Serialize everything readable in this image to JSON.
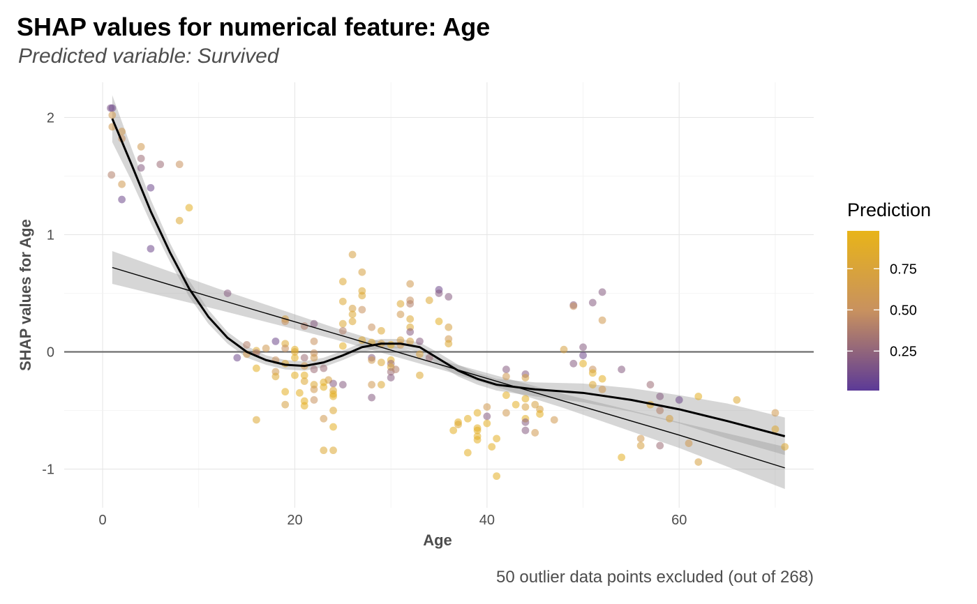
{
  "title": "SHAP values for numerical feature: Age",
  "subtitle": "Predicted variable: Survived",
  "caption": "50 outlier data points excluded (out of 268)",
  "chart_data": {
    "type": "scatter",
    "title": "SHAP values for numerical feature: Age",
    "subtitle": "Predicted variable: Survived",
    "xlabel": "Age",
    "ylabel": "SHAP values for Age",
    "xlim": [
      -4,
      74
    ],
    "ylim": [
      -1.33,
      2.3
    ],
    "xticks": [
      0,
      20,
      40,
      60
    ],
    "yticks": [
      -1,
      0,
      1,
      2
    ],
    "ytick_labels": [
      "-1",
      "0",
      "1",
      "2"
    ],
    "grid": true,
    "reference_line_y": 0,
    "legend": {
      "title": "Prediction",
      "type": "colorbar",
      "range": [
        0.01,
        0.98
      ],
      "ticks": [
        0.25,
        0.5,
        0.75
      ],
      "tick_labels": [
        "0.25",
        "0.50",
        "0.75"
      ],
      "colors": [
        "#5c3a97",
        "#c8915f",
        "#e8b419"
      ],
      "placement": "right"
    },
    "points": [
      {
        "x": 0.83,
        "y": 2.08,
        "p": 0.15
      },
      {
        "x": 1,
        "y": 2.08,
        "p": 0.1
      },
      {
        "x": 1,
        "y": 2.02,
        "p": 0.6
      },
      {
        "x": 1,
        "y": 1.92,
        "p": 0.6
      },
      {
        "x": 0.92,
        "y": 1.51,
        "p": 0.4
      },
      {
        "x": 2,
        "y": 1.88,
        "p": 0.6
      },
      {
        "x": 2,
        "y": 1.82,
        "p": 0.5
      },
      {
        "x": 2,
        "y": 1.43,
        "p": 0.6
      },
      {
        "x": 2,
        "y": 1.3,
        "p": 0.1
      },
      {
        "x": 4,
        "y": 1.75,
        "p": 0.6
      },
      {
        "x": 4,
        "y": 1.65,
        "p": 0.3
      },
      {
        "x": 4,
        "y": 1.57,
        "p": 0.2
      },
      {
        "x": 5,
        "y": 1.4,
        "p": 0.1
      },
      {
        "x": 5,
        "y": 0.88,
        "p": 0.1
      },
      {
        "x": 6,
        "y": 1.6,
        "p": 0.3
      },
      {
        "x": 8,
        "y": 1.6,
        "p": 0.5
      },
      {
        "x": 8,
        "y": 1.12,
        "p": 0.8
      },
      {
        "x": 9,
        "y": 1.23,
        "p": 0.9
      },
      {
        "x": 13,
        "y": 0.5,
        "p": 0.2
      },
      {
        "x": 14,
        "y": -0.05,
        "p": 0.1
      },
      {
        "x": 15,
        "y": 0.06,
        "p": 0.4
      },
      {
        "x": 15,
        "y": -0.02,
        "p": 0.6
      },
      {
        "x": 16,
        "y": 0.01,
        "p": 0.8
      },
      {
        "x": 16,
        "y": -0.01,
        "p": 0.3
      },
      {
        "x": 16,
        "y": -0.14,
        "p": 0.9
      },
      {
        "x": 16,
        "y": -0.58,
        "p": 0.8
      },
      {
        "x": 17,
        "y": 0.03,
        "p": 0.6
      },
      {
        "x": 18,
        "y": 0.09,
        "p": 0.1
      },
      {
        "x": 18,
        "y": -0.07,
        "p": 0.5
      },
      {
        "x": 18,
        "y": -0.17,
        "p": 0.6
      },
      {
        "x": 18,
        "y": -0.21,
        "p": 0.8
      },
      {
        "x": 19,
        "y": 0.28,
        "p": 0.7
      },
      {
        "x": 19,
        "y": 0.26,
        "p": 0.5
      },
      {
        "x": 19,
        "y": 0.07,
        "p": 0.8
      },
      {
        "x": 19,
        "y": 0.03,
        "p": 0.5
      },
      {
        "x": 19,
        "y": -0.1,
        "p": 0.8
      },
      {
        "x": 19,
        "y": -0.34,
        "p": 0.9
      },
      {
        "x": 19,
        "y": -0.45,
        "p": 0.7
      },
      {
        "x": 20,
        "y": 0.02,
        "p": 0.9
      },
      {
        "x": 20,
        "y": 0.0,
        "p": 0.8
      },
      {
        "x": 20,
        "y": -0.05,
        "p": 0.9
      },
      {
        "x": 20,
        "y": -0.2,
        "p": 0.9
      },
      {
        "x": 20.5,
        "y": -0.35,
        "p": 0.9
      },
      {
        "x": 21,
        "y": 0.22,
        "p": 0.4
      },
      {
        "x": 21,
        "y": -0.05,
        "p": 0.3
      },
      {
        "x": 21,
        "y": -0.12,
        "p": 0.6
      },
      {
        "x": 21,
        "y": -0.2,
        "p": 0.9
      },
      {
        "x": 21,
        "y": -0.25,
        "p": 0.8
      },
      {
        "x": 21,
        "y": -0.42,
        "p": 0.9
      },
      {
        "x": 21,
        "y": -0.46,
        "p": 0.9
      },
      {
        "x": 22,
        "y": 0.24,
        "p": 0.2
      },
      {
        "x": 22,
        "y": 0.09,
        "p": 0.5
      },
      {
        "x": 22,
        "y": -0.01,
        "p": 0.5
      },
      {
        "x": 22,
        "y": -0.05,
        "p": 0.6
      },
      {
        "x": 22,
        "y": -0.15,
        "p": 0.3
      },
      {
        "x": 22,
        "y": -0.28,
        "p": 0.8
      },
      {
        "x": 22,
        "y": -0.32,
        "p": 0.6
      },
      {
        "x": 22,
        "y": -0.41,
        "p": 0.5
      },
      {
        "x": 23,
        "y": -0.14,
        "p": 0.3
      },
      {
        "x": 23,
        "y": -0.26,
        "p": 0.9
      },
      {
        "x": 23,
        "y": -0.3,
        "p": 0.9
      },
      {
        "x": 23,
        "y": -0.57,
        "p": 0.6
      },
      {
        "x": 23,
        "y": -0.84,
        "p": 0.8
      },
      {
        "x": 23.5,
        "y": -0.24,
        "p": 0.7
      },
      {
        "x": 24,
        "y": -0.27,
        "p": 0.2
      },
      {
        "x": 24,
        "y": -0.33,
        "p": 0.8
      },
      {
        "x": 24,
        "y": -0.36,
        "p": 0.9
      },
      {
        "x": 24,
        "y": -0.38,
        "p": 0.9
      },
      {
        "x": 24,
        "y": -0.5,
        "p": 0.8
      },
      {
        "x": 24,
        "y": -0.64,
        "p": 0.9
      },
      {
        "x": 24,
        "y": -0.84,
        "p": 0.8
      },
      {
        "x": 25,
        "y": 0.6,
        "p": 0.8
      },
      {
        "x": 25,
        "y": 0.43,
        "p": 0.8
      },
      {
        "x": 25,
        "y": 0.24,
        "p": 0.8
      },
      {
        "x": 25,
        "y": 0.18,
        "p": 0.4
      },
      {
        "x": 25,
        "y": 0.05,
        "p": 0.9
      },
      {
        "x": 25,
        "y": -0.28,
        "p": 0.2
      },
      {
        "x": 26,
        "y": 0.83,
        "p": 0.7
      },
      {
        "x": 26,
        "y": 0.37,
        "p": 0.7
      },
      {
        "x": 26,
        "y": 0.32,
        "p": 0.8
      },
      {
        "x": 26,
        "y": 0.26,
        "p": 0.8
      },
      {
        "x": 27,
        "y": 0.68,
        "p": 0.7
      },
      {
        "x": 27,
        "y": 0.52,
        "p": 0.8
      },
      {
        "x": 27,
        "y": 0.48,
        "p": 0.8
      },
      {
        "x": 27,
        "y": 0.36,
        "p": 0.5
      },
      {
        "x": 27,
        "y": 0.1,
        "p": 0.8
      },
      {
        "x": 28,
        "y": 0.21,
        "p": 0.5
      },
      {
        "x": 28,
        "y": 0.08,
        "p": 0.8
      },
      {
        "x": 28,
        "y": -0.05,
        "p": 0.2
      },
      {
        "x": 28,
        "y": -0.07,
        "p": 0.6
      },
      {
        "x": 28,
        "y": -0.28,
        "p": 0.6
      },
      {
        "x": 28,
        "y": -0.39,
        "p": 0.2
      },
      {
        "x": 29,
        "y": 0.18,
        "p": 0.8
      },
      {
        "x": 29,
        "y": 0.07,
        "p": 0.7
      },
      {
        "x": 29,
        "y": -0.09,
        "p": 0.8
      },
      {
        "x": 29,
        "y": -0.28,
        "p": 0.8
      },
      {
        "x": 30,
        "y": 0.06,
        "p": 0.9
      },
      {
        "x": 30,
        "y": -0.07,
        "p": 0.9
      },
      {
        "x": 30,
        "y": -0.1,
        "p": 0.3
      },
      {
        "x": 30,
        "y": -0.13,
        "p": 0.8
      },
      {
        "x": 30,
        "y": -0.17,
        "p": 0.3
      },
      {
        "x": 30,
        "y": -0.22,
        "p": 0.2
      },
      {
        "x": 30.5,
        "y": -0.15,
        "p": 0.4
      },
      {
        "x": 31,
        "y": 0.41,
        "p": 0.8
      },
      {
        "x": 31,
        "y": 0.32,
        "p": 0.6
      },
      {
        "x": 31,
        "y": 0.1,
        "p": 0.7
      },
      {
        "x": 31,
        "y": 0.06,
        "p": 0.6
      },
      {
        "x": 32,
        "y": 0.58,
        "p": 0.6
      },
      {
        "x": 32,
        "y": 0.44,
        "p": 0.5
      },
      {
        "x": 32,
        "y": 0.41,
        "p": 0.4
      },
      {
        "x": 32,
        "y": 0.28,
        "p": 0.8
      },
      {
        "x": 32,
        "y": 0.21,
        "p": 0.8
      },
      {
        "x": 32,
        "y": 0.17,
        "p": 0.2
      },
      {
        "x": 32,
        "y": 0.09,
        "p": 0.7
      },
      {
        "x": 33,
        "y": 0.09,
        "p": 0.2
      },
      {
        "x": 33,
        "y": -0.02,
        "p": 0.7
      },
      {
        "x": 33,
        "y": -0.2,
        "p": 0.8
      },
      {
        "x": 34,
        "y": 0.44,
        "p": 0.8
      },
      {
        "x": 34,
        "y": -0.05,
        "p": 0.3
      },
      {
        "x": 35,
        "y": 0.53,
        "p": 0.1
      },
      {
        "x": 35,
        "y": 0.5,
        "p": 0.2
      },
      {
        "x": 35,
        "y": 0.26,
        "p": 0.9
      },
      {
        "x": 36,
        "y": 0.47,
        "p": 0.2
      },
      {
        "x": 36,
        "y": 0.21,
        "p": 0.7
      },
      {
        "x": 36,
        "y": 0.11,
        "p": 0.6
      },
      {
        "x": 36,
        "y": 0.07,
        "p": 0.8
      },
      {
        "x": 36.5,
        "y": -0.67,
        "p": 0.9
      },
      {
        "x": 37,
        "y": -0.6,
        "p": 0.9
      },
      {
        "x": 37,
        "y": -0.62,
        "p": 0.8
      },
      {
        "x": 38,
        "y": -0.57,
        "p": 0.9
      },
      {
        "x": 38,
        "y": -0.86,
        "p": 0.9
      },
      {
        "x": 39,
        "y": -0.52,
        "p": 0.9
      },
      {
        "x": 39,
        "y": -0.65,
        "p": 0.9
      },
      {
        "x": 39,
        "y": -0.67,
        "p": 0.9
      },
      {
        "x": 39,
        "y": -0.72,
        "p": 0.9
      },
      {
        "x": 39,
        "y": -0.75,
        "p": 0.9
      },
      {
        "x": 40,
        "y": -0.47,
        "p": 0.6
      },
      {
        "x": 40,
        "y": -0.55,
        "p": 0.2
      },
      {
        "x": 40,
        "y": -0.61,
        "p": 0.9
      },
      {
        "x": 40.5,
        "y": -0.81,
        "p": 0.9
      },
      {
        "x": 41,
        "y": -0.74,
        "p": 0.9
      },
      {
        "x": 41,
        "y": -1.06,
        "p": 0.9
      },
      {
        "x": 42,
        "y": -0.15,
        "p": 0.2
      },
      {
        "x": 42,
        "y": -0.21,
        "p": 0.6
      },
      {
        "x": 42,
        "y": -0.37,
        "p": 0.9
      },
      {
        "x": 42,
        "y": -0.52,
        "p": 0.6
      },
      {
        "x": 43,
        "y": -0.45,
        "p": 0.9
      },
      {
        "x": 44,
        "y": -0.19,
        "p": 0.2
      },
      {
        "x": 44,
        "y": -0.22,
        "p": 0.7
      },
      {
        "x": 44,
        "y": -0.4,
        "p": 0.9
      },
      {
        "x": 44,
        "y": -0.47,
        "p": 0.7
      },
      {
        "x": 44,
        "y": -0.57,
        "p": 0.9
      },
      {
        "x": 44,
        "y": -0.6,
        "p": 0.2
      },
      {
        "x": 44,
        "y": -0.67,
        "p": 0.2
      },
      {
        "x": 45,
        "y": -0.45,
        "p": 0.7
      },
      {
        "x": 45,
        "y": -0.69,
        "p": 0.6
      },
      {
        "x": 45.5,
        "y": -0.49,
        "p": 0.7
      },
      {
        "x": 45.5,
        "y": -0.53,
        "p": 0.9
      },
      {
        "x": 47,
        "y": -0.58,
        "p": 0.6
      },
      {
        "x": 48,
        "y": 0.02,
        "p": 0.7
      },
      {
        "x": 49,
        "y": 0.4,
        "p": 0.2
      },
      {
        "x": 49,
        "y": 0.39,
        "p": 0.5
      },
      {
        "x": 49,
        "y": -0.1,
        "p": 0.2
      },
      {
        "x": 50,
        "y": 0.04,
        "p": 0.2
      },
      {
        "x": 50,
        "y": -0.03,
        "p": 0.1
      },
      {
        "x": 50,
        "y": -0.1,
        "p": 0.9
      },
      {
        "x": 51,
        "y": 0.42,
        "p": 0.2
      },
      {
        "x": 51,
        "y": -0.15,
        "p": 0.5
      },
      {
        "x": 51,
        "y": -0.18,
        "p": 0.9
      },
      {
        "x": 51,
        "y": -0.28,
        "p": 0.8
      },
      {
        "x": 52,
        "y": 0.51,
        "p": 0.2
      },
      {
        "x": 52,
        "y": 0.27,
        "p": 0.6
      },
      {
        "x": 52,
        "y": -0.23,
        "p": 0.9
      },
      {
        "x": 52,
        "y": -0.32,
        "p": 0.6
      },
      {
        "x": 54,
        "y": -0.15,
        "p": 0.2
      },
      {
        "x": 54,
        "y": -0.9,
        "p": 0.9
      },
      {
        "x": 56,
        "y": -0.74,
        "p": 0.6
      },
      {
        "x": 56,
        "y": -0.8,
        "p": 0.7
      },
      {
        "x": 57,
        "y": -0.28,
        "p": 0.3
      },
      {
        "x": 57,
        "y": -0.45,
        "p": 0.8
      },
      {
        "x": 58,
        "y": -0.38,
        "p": 0.2
      },
      {
        "x": 58,
        "y": -0.5,
        "p": 0.4
      },
      {
        "x": 58,
        "y": -0.8,
        "p": 0.3
      },
      {
        "x": 59,
        "y": -0.57,
        "p": 0.7
      },
      {
        "x": 60,
        "y": -0.41,
        "p": 0.1
      },
      {
        "x": 61,
        "y": -0.78,
        "p": 0.6
      },
      {
        "x": 62,
        "y": -0.38,
        "p": 0.9
      },
      {
        "x": 62,
        "y": -0.94,
        "p": 0.7
      },
      {
        "x": 66,
        "y": -0.41,
        "p": 0.8
      },
      {
        "x": 70,
        "y": -0.52,
        "p": 0.6
      },
      {
        "x": 70,
        "y": -0.66,
        "p": 0.8
      },
      {
        "x": 71,
        "y": -0.81,
        "p": 0.8
      }
    ],
    "series": [
      {
        "kind": "smooth",
        "x": [
          1,
          3,
          5,
          7,
          9,
          11,
          13,
          15,
          17,
          19,
          21,
          23,
          25,
          27,
          29,
          31,
          33,
          35,
          37,
          39,
          41,
          45,
          50,
          55,
          60,
          65,
          71
        ],
        "y": [
          1.99,
          1.6,
          1.2,
          0.85,
          0.54,
          0.3,
          0.12,
          0.0,
          -0.07,
          -0.11,
          -0.12,
          -0.09,
          -0.03,
          0.04,
          0.07,
          0.07,
          0.04,
          -0.06,
          -0.16,
          -0.23,
          -0.28,
          -0.32,
          -0.35,
          -0.41,
          -0.49,
          -0.59,
          -0.72
        ],
        "band": [
          0.2,
          0.14,
          0.1,
          0.08,
          0.07,
          0.06,
          0.05,
          0.05,
          0.04,
          0.04,
          0.04,
          0.04,
          0.04,
          0.04,
          0.04,
          0.04,
          0.04,
          0.05,
          0.05,
          0.05,
          0.05,
          0.06,
          0.08,
          0.1,
          0.12,
          0.15,
          0.16
        ]
      },
      {
        "kind": "linear",
        "x": [
          1,
          12,
          24,
          36,
          48,
          60,
          71
        ],
        "y": [
          0.72,
          0.45,
          0.16,
          -0.13,
          -0.42,
          -0.71,
          -0.99
        ],
        "band": [
          0.14,
          0.09,
          0.05,
          0.04,
          0.06,
          0.11,
          0.18
        ]
      }
    ]
  }
}
